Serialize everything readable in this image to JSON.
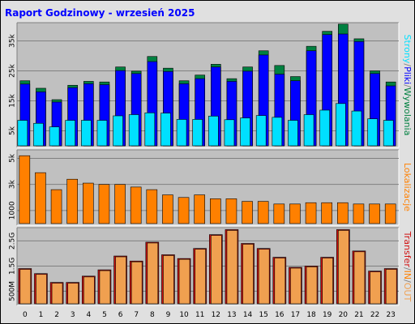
{
  "title": "Raport Godzinowy -  wrzesień 2025",
  "colors": {
    "background": "#e0e0e0",
    "panel": "#c0c0c0",
    "title": "#0000ff",
    "hits": "#008040",
    "files": "#0000ff",
    "pages": "#00e0ff",
    "visits": "#ff8000",
    "kbytes": "#d01010",
    "kb_in": "#ff8000",
    "kb_out": "#f0a050",
    "grid": "#808080"
  },
  "chart_data": [
    {
      "type": "bar",
      "name": "hits-files-pages",
      "categories": [
        "0",
        "1",
        "2",
        "3",
        "4",
        "5",
        "6",
        "7",
        "8",
        "9",
        "10",
        "11",
        "12",
        "13",
        "14",
        "15",
        "16",
        "17",
        "18",
        "19",
        "20",
        "21",
        "22",
        "23"
      ],
      "ylim": [
        0,
        40000
      ],
      "yticks": [
        "5k",
        "15k",
        "25k",
        "35k"
      ],
      "ytick_values": [
        5000,
        15000,
        25000,
        35000
      ],
      "series": [
        {
          "name": "Strony",
          "color_key": "pages",
          "values": [
            8500,
            7500,
            6300,
            8500,
            8500,
            8500,
            10000,
            10400,
            11000,
            10900,
            8800,
            8800,
            9900,
            8700,
            9300,
            10100,
            9500,
            8500,
            10400,
            11900,
            14100,
            11600,
            9000,
            8500
          ]
        },
        {
          "name": "Pliki",
          "color_key": "files",
          "values": [
            20600,
            18000,
            14600,
            19400,
            20700,
            20400,
            25100,
            24100,
            28100,
            24800,
            20700,
            22400,
            26300,
            21500,
            24900,
            30300,
            23900,
            21700,
            31700,
            37100,
            37300,
            34800,
            24100,
            20000
          ]
        },
        {
          "name": "Wywolania",
          "color_key": "hits",
          "values": [
            21700,
            19200,
            15400,
            20200,
            21500,
            21300,
            26300,
            24900,
            29800,
            25900,
            21700,
            23600,
            27200,
            22400,
            26300,
            31700,
            26800,
            23100,
            33200,
            38200,
            40600,
            35700,
            25000,
            21300
          ]
        }
      ]
    },
    {
      "type": "bar",
      "name": "visits",
      "categories": [
        "0",
        "1",
        "2",
        "3",
        "4",
        "5",
        "6",
        "7",
        "8",
        "9",
        "10",
        "11",
        "12",
        "13",
        "14",
        "15",
        "16",
        "17",
        "18",
        "19",
        "20",
        "21",
        "22",
        "23"
      ],
      "ylim": [
        0,
        5400
      ],
      "yticks": [
        "1000",
        "3k",
        "5k"
      ],
      "ytick_values": [
        1000,
        3000,
        5000
      ],
      "series": [
        {
          "name": "Lokalizacje",
          "color_key": "visits",
          "values": [
            5200,
            3900,
            2600,
            3400,
            3100,
            3000,
            3000,
            2800,
            2600,
            2200,
            2000,
            2200,
            1900,
            1900,
            1700,
            1700,
            1500,
            1500,
            1600,
            1600,
            1600,
            1500,
            1500,
            1500
          ]
        }
      ]
    },
    {
      "type": "bar",
      "name": "transfer",
      "categories": [
        "0",
        "1",
        "2",
        "3",
        "4",
        "5",
        "6",
        "7",
        "8",
        "9",
        "10",
        "11",
        "12",
        "13",
        "14",
        "15",
        "16",
        "17",
        "18",
        "19",
        "20",
        "21",
        "22",
        "23"
      ],
      "ylim": [
        0,
        2900
      ],
      "yticks": [
        "500M",
        "1.5G",
        "2.5G"
      ],
      "ytick_values": [
        500,
        1500,
        2500
      ],
      "series": [
        {
          "name": "Transfer",
          "color_key": "kbytes",
          "values": [
            1400,
            1200,
            850,
            850,
            1100,
            1350,
            1900,
            1700,
            2450,
            1950,
            1800,
            2200,
            2750,
            2950,
            2400,
            2200,
            1850,
            1450,
            1500,
            1850,
            2950,
            2100,
            1300,
            1400
          ]
        },
        {
          "name": "IN",
          "color_key": "kb_in",
          "values": [
            1400,
            1200,
            850,
            850,
            1100,
            1350,
            1900,
            1700,
            2450,
            1950,
            1800,
            2200,
            2750,
            2950,
            2400,
            2200,
            1850,
            1450,
            1500,
            1850,
            2950,
            2100,
            1300,
            1400
          ]
        },
        {
          "name": "OUT",
          "color_key": "kb_out",
          "values": [
            1400,
            1200,
            850,
            850,
            1100,
            1350,
            1900,
            1700,
            2450,
            1950,
            1800,
            2200,
            2750,
            2950,
            2400,
            2200,
            1850,
            1450,
            1500,
            1850,
            2950,
            2100,
            1300,
            1400
          ]
        }
      ]
    }
  ],
  "side_labels": {
    "top": [
      {
        "text": "Strony",
        "color_key": "pages"
      },
      {
        "text": "/",
        "color_key": "grid"
      },
      {
        "text": "Pliki",
        "color_key": "files"
      },
      {
        "text": "/",
        "color_key": "grid"
      },
      {
        "text": "Wywolania",
        "color_key": "hits"
      }
    ],
    "middle": [
      {
        "text": "Lokalizacje",
        "color_key": "visits"
      }
    ],
    "bottom": [
      {
        "text": "Transfer",
        "color_key": "kbytes"
      },
      {
        "text": "/",
        "color_key": "grid"
      },
      {
        "text": "IN",
        "color_key": "kb_in"
      },
      {
        "text": "/",
        "color_key": "grid"
      },
      {
        "text": "OUT",
        "color_key": "kb_out"
      }
    ]
  }
}
